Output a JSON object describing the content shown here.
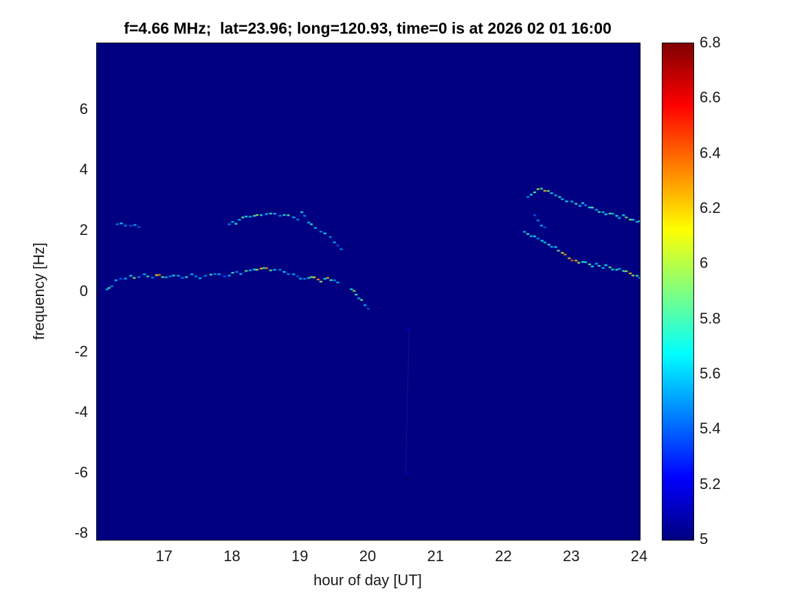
{
  "title": "f=4.66 MHz;  lat=23.96; long=120.93, time=0 is at 2026 02 01 16:00",
  "axes": {
    "xlabel": "hour of day [UT]",
    "ylabel": "frequency [Hz]",
    "xlim": [
      16,
      24
    ],
    "ylim": [
      -8.2,
      8.2
    ],
    "x_ticks": [
      17,
      18,
      19,
      20,
      21,
      22,
      23,
      24
    ],
    "x_tick_labels": [
      "17",
      "18",
      "19",
      "20",
      "21",
      "22",
      "23",
      "24"
    ],
    "y_ticks": [
      6,
      4,
      2,
      0,
      -2,
      -4,
      -6,
      -8
    ],
    "y_tick_labels": [
      "6",
      "4",
      "2",
      "0",
      "-2",
      "-4",
      "-6",
      "-8"
    ]
  },
  "colorbar": {
    "min": 5,
    "max": 6.8,
    "colormap": "jet",
    "ticks": [
      6.8,
      6.6,
      6.4,
      6.2,
      6,
      5.8,
      5.6,
      5.4,
      5.2,
      5
    ],
    "tick_labels": [
      "6.8",
      "6.6",
      "6.4",
      "6.2",
      "6",
      "5.8",
      "5.6",
      "5.4",
      "5.2",
      "5"
    ]
  },
  "chart_data": {
    "type": "heatmap",
    "title": "f=4.66 MHz;  lat=23.96; long=120.93, time=0 is at 2026 02 01 16:00",
    "xlabel": "hour of day [UT]",
    "ylabel": "frequency [Hz]",
    "xlim": [
      16,
      24
    ],
    "ylim": [
      -8.2,
      8.2
    ],
    "clim": [
      5,
      6.8
    ],
    "background_value": 5,
    "background_color": "#000080",
    "legend": "none",
    "grid": false,
    "series": [
      {
        "name": "lower-trace-16-20h",
        "points": [
          [
            16.15,
            0.05,
            5.6
          ],
          [
            16.18,
            0.12,
            5.8
          ],
          [
            16.22,
            0.2,
            5.5
          ],
          [
            16.28,
            0.35,
            5.6
          ],
          [
            16.35,
            0.42,
            5.4
          ],
          [
            16.42,
            0.45,
            5.6
          ],
          [
            16.5,
            0.5,
            5.7
          ],
          [
            16.55,
            0.45,
            6.0
          ],
          [
            16.62,
            0.5,
            5.5
          ],
          [
            16.7,
            0.55,
            5.6
          ],
          [
            16.75,
            0.5,
            5.8
          ],
          [
            16.82,
            0.48,
            5.5
          ],
          [
            16.88,
            0.52,
            6.1
          ],
          [
            16.92,
            0.55,
            6.3
          ],
          [
            16.97,
            0.5,
            5.9
          ],
          [
            17.02,
            0.45,
            5.6
          ],
          [
            17.08,
            0.5,
            5.5
          ],
          [
            17.13,
            0.55,
            5.7
          ],
          [
            17.2,
            0.5,
            5.6
          ],
          [
            17.26,
            0.45,
            5.5
          ],
          [
            17.32,
            0.5,
            5.8
          ],
          [
            17.4,
            0.55,
            5.6
          ],
          [
            17.46,
            0.5,
            5.5
          ],
          [
            17.52,
            0.46,
            5.6
          ],
          [
            17.6,
            0.5,
            5.5
          ],
          [
            17.68,
            0.56,
            5.8
          ],
          [
            17.74,
            0.6,
            5.5
          ],
          [
            17.8,
            0.55,
            5.6
          ],
          [
            17.88,
            0.5,
            5.4
          ],
          [
            17.95,
            0.55,
            5.6
          ],
          [
            18.0,
            0.6,
            5.8
          ],
          [
            18.06,
            0.65,
            5.5
          ],
          [
            18.12,
            0.6,
            5.6
          ],
          [
            18.2,
            0.66,
            5.9
          ],
          [
            18.26,
            0.7,
            5.6
          ],
          [
            18.32,
            0.75,
            5.7
          ],
          [
            18.36,
            0.7,
            6.0
          ],
          [
            18.42,
            0.76,
            6.2
          ],
          [
            18.46,
            0.8,
            5.8
          ],
          [
            18.5,
            0.75,
            6.3
          ],
          [
            18.56,
            0.7,
            5.9
          ],
          [
            18.62,
            0.74,
            5.6
          ],
          [
            18.7,
            0.7,
            5.5
          ],
          [
            18.76,
            0.65,
            5.7
          ],
          [
            18.82,
            0.6,
            5.5
          ],
          [
            18.9,
            0.55,
            5.6
          ],
          [
            18.96,
            0.5,
            5.4
          ],
          [
            19.0,
            0.45,
            5.6
          ],
          [
            19.06,
            0.4,
            5.5
          ],
          [
            19.12,
            0.45,
            5.7
          ],
          [
            19.16,
            0.5,
            5.9
          ],
          [
            19.2,
            0.45,
            6.1
          ],
          [
            19.26,
            0.4,
            6.3
          ],
          [
            19.3,
            0.35,
            6.0
          ],
          [
            19.36,
            0.4,
            5.7
          ],
          [
            19.4,
            0.45,
            6.2
          ],
          [
            19.45,
            0.4,
            5.8
          ],
          [
            19.5,
            0.35,
            5.5
          ],
          [
            19.55,
            0.3,
            5.6
          ],
          [
            19.75,
            0.1,
            5.7
          ],
          [
            19.79,
            0.0,
            6.0
          ],
          [
            19.82,
            -0.1,
            5.8
          ],
          [
            19.86,
            -0.2,
            5.6
          ],
          [
            19.9,
            -0.3,
            5.9
          ],
          [
            19.95,
            -0.45,
            5.6
          ],
          [
            20.0,
            -0.55,
            5.4
          ]
        ]
      },
      {
        "name": "upper-left-short-trace",
        "points": [
          [
            16.3,
            2.2,
            5.5
          ],
          [
            16.36,
            2.25,
            5.7
          ],
          [
            16.42,
            2.2,
            5.5
          ],
          [
            16.5,
            2.15,
            5.4
          ],
          [
            16.56,
            2.2,
            5.6
          ],
          [
            16.62,
            2.15,
            5.4
          ]
        ]
      },
      {
        "name": "upper-mid-trace-18-19.6h",
        "points": [
          [
            17.95,
            2.2,
            5.5
          ],
          [
            18.0,
            2.3,
            5.6
          ],
          [
            18.05,
            2.26,
            5.8
          ],
          [
            18.1,
            2.35,
            5.6
          ],
          [
            18.15,
            2.45,
            5.9
          ],
          [
            18.2,
            2.5,
            5.7
          ],
          [
            18.26,
            2.45,
            5.6
          ],
          [
            18.32,
            2.5,
            5.8
          ],
          [
            18.36,
            2.55,
            6.0
          ],
          [
            18.42,
            2.5,
            5.7
          ],
          [
            18.5,
            2.56,
            5.6
          ],
          [
            18.56,
            2.6,
            5.8
          ],
          [
            18.62,
            2.55,
            5.6
          ],
          [
            18.7,
            2.5,
            5.5
          ],
          [
            18.76,
            2.55,
            5.7
          ],
          [
            18.82,
            2.5,
            5.9
          ],
          [
            18.9,
            2.45,
            5.6
          ],
          [
            18.96,
            2.4,
            5.5
          ],
          [
            19.02,
            2.6,
            5.7
          ],
          [
            19.06,
            2.5,
            5.5
          ],
          [
            19.12,
            2.3,
            5.6
          ],
          [
            19.16,
            2.2,
            5.8
          ],
          [
            19.22,
            2.1,
            5.6
          ],
          [
            19.3,
            2.0,
            5.5
          ],
          [
            19.36,
            1.9,
            5.7
          ],
          [
            19.44,
            1.8,
            5.5
          ],
          [
            19.5,
            1.65,
            5.6
          ],
          [
            19.55,
            1.5,
            5.4
          ],
          [
            19.6,
            1.4,
            5.5
          ]
        ]
      },
      {
        "name": "right-upper-branch-22.3-24h",
        "points": [
          [
            22.35,
            3.1,
            5.5
          ],
          [
            22.4,
            3.2,
            5.7
          ],
          [
            22.45,
            3.3,
            5.9
          ],
          [
            22.5,
            3.36,
            6.0
          ],
          [
            22.55,
            3.4,
            5.8
          ],
          [
            22.6,
            3.35,
            6.2
          ],
          [
            22.65,
            3.3,
            5.9
          ],
          [
            22.7,
            3.25,
            5.7
          ],
          [
            22.76,
            3.2,
            5.6
          ],
          [
            22.82,
            3.1,
            5.8
          ],
          [
            22.86,
            3.05,
            5.6
          ],
          [
            22.92,
            3.0,
            5.7
          ],
          [
            23.0,
            2.95,
            5.6
          ],
          [
            23.06,
            2.9,
            5.8
          ],
          [
            23.12,
            2.85,
            5.6
          ],
          [
            23.16,
            2.9,
            5.7
          ],
          [
            23.2,
            2.85,
            5.5
          ],
          [
            23.26,
            2.8,
            5.7
          ],
          [
            23.3,
            2.75,
            5.9
          ],
          [
            23.36,
            2.7,
            5.6
          ],
          [
            23.4,
            2.65,
            5.8
          ],
          [
            23.46,
            2.6,
            5.6
          ],
          [
            23.5,
            2.55,
            5.7
          ],
          [
            23.56,
            2.6,
            5.9
          ],
          [
            23.6,
            2.55,
            5.6
          ],
          [
            23.66,
            2.5,
            5.8
          ],
          [
            23.7,
            2.45,
            5.6
          ],
          [
            23.76,
            2.5,
            5.7
          ],
          [
            23.8,
            2.45,
            5.9
          ],
          [
            23.86,
            2.4,
            6.0
          ],
          [
            23.9,
            2.35,
            5.7
          ],
          [
            23.96,
            2.3,
            5.6
          ],
          [
            24.0,
            2.35,
            5.8
          ]
        ]
      },
      {
        "name": "right-branch-connector",
        "points": [
          [
            22.45,
            2.5,
            5.4
          ],
          [
            22.5,
            2.35,
            5.5
          ],
          [
            22.55,
            2.2,
            5.6
          ],
          [
            22.6,
            2.1,
            5.4
          ]
        ]
      },
      {
        "name": "right-lower-branch-22.3-24h",
        "points": [
          [
            22.3,
            1.95,
            5.6
          ],
          [
            22.35,
            1.9,
            5.8
          ],
          [
            22.4,
            1.85,
            5.6
          ],
          [
            22.45,
            1.8,
            5.7
          ],
          [
            22.5,
            1.75,
            5.5
          ],
          [
            22.56,
            1.7,
            5.7
          ],
          [
            22.6,
            1.6,
            5.6
          ],
          [
            22.66,
            1.55,
            5.8
          ],
          [
            22.7,
            1.5,
            5.6
          ],
          [
            22.76,
            1.45,
            5.7
          ],
          [
            22.8,
            1.35,
            5.9
          ],
          [
            22.86,
            1.3,
            6.1
          ],
          [
            22.9,
            1.2,
            6.3
          ],
          [
            22.96,
            1.1,
            6.2
          ],
          [
            23.0,
            1.05,
            6.4
          ],
          [
            23.06,
            1.0,
            6.2
          ],
          [
            23.1,
            0.95,
            6.0
          ],
          [
            23.16,
            1.0,
            5.8
          ],
          [
            23.2,
            0.95,
            5.7
          ],
          [
            23.26,
            0.9,
            5.9
          ],
          [
            23.3,
            0.85,
            5.7
          ],
          [
            23.36,
            0.9,
            5.6
          ],
          [
            23.4,
            0.85,
            5.8
          ],
          [
            23.46,
            0.8,
            5.6
          ],
          [
            23.5,
            0.85,
            5.7
          ],
          [
            23.56,
            0.8,
            5.9
          ],
          [
            23.6,
            0.75,
            5.7
          ],
          [
            23.66,
            0.7,
            5.8
          ],
          [
            23.7,
            0.75,
            5.6
          ],
          [
            23.76,
            0.7,
            5.8
          ],
          [
            23.8,
            0.65,
            6.0
          ],
          [
            23.86,
            0.6,
            6.2
          ],
          [
            23.9,
            0.55,
            6.0
          ],
          [
            23.96,
            0.5,
            5.8
          ],
          [
            24.0,
            0.45,
            5.6
          ]
        ]
      },
      {
        "name": "faint-isolated-dots",
        "points": [
          [
            20.6,
            -1.3,
            5.2
          ],
          [
            20.55,
            -6.0,
            5.15
          ]
        ]
      }
    ]
  }
}
